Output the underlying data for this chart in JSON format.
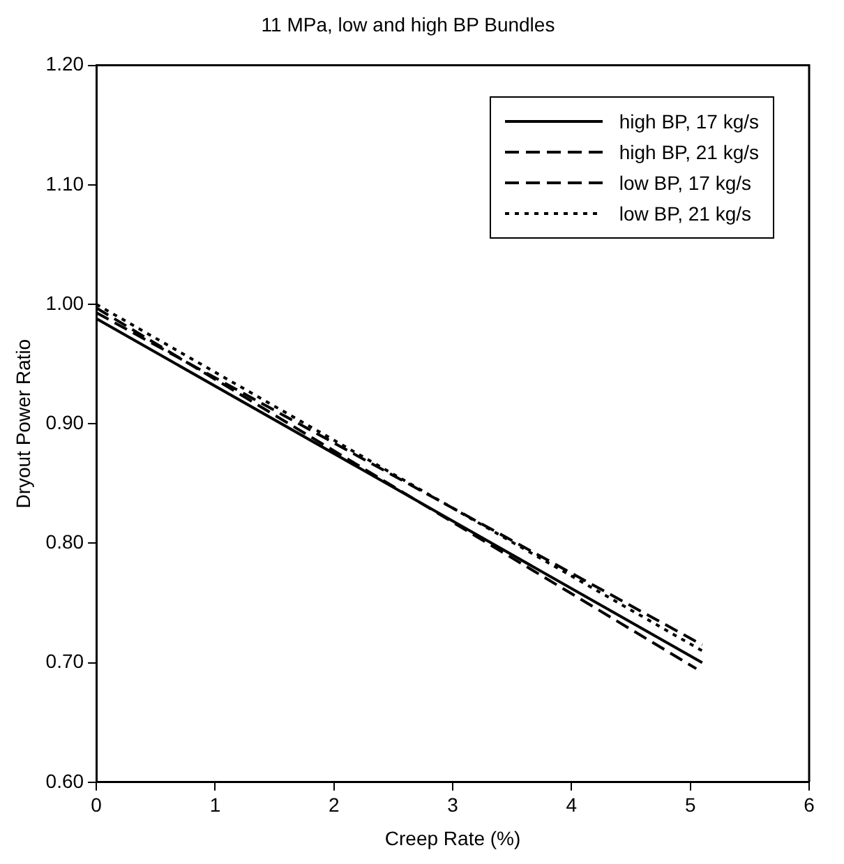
{
  "chart_data": {
    "type": "line",
    "title": "11 MPa, low and high BP Bundles",
    "xlabel": "Creep Rate (%)",
    "ylabel": "Dryout Power Ratio",
    "xlim": [
      0,
      6
    ],
    "xticks": [
      0,
      1,
      2,
      3,
      4,
      5,
      6
    ],
    "ylim": [
      0.6,
      1.2
    ],
    "yticks": [
      {
        "value": 0.6,
        "label": "0.60"
      },
      {
        "value": 0.7,
        "label": "0.70"
      },
      {
        "value": 0.8,
        "label": "0.80"
      },
      {
        "value": 0.9,
        "label": "0.90"
      },
      {
        "value": 1.0,
        "label": "1.00"
      },
      {
        "value": 1.1,
        "label": "1.10"
      },
      {
        "value": 1.2,
        "label": "1.20"
      }
    ],
    "grid": false,
    "legend": "top right",
    "marker": "none",
    "series": [
      {
        "name": "high BP, 17 kg/s",
        "color": "#000000",
        "line_style": "solid",
        "x": [
          0,
          5.1
        ],
        "values": [
          0.988,
          0.7
        ]
      },
      {
        "name": "high BP, 21 kg/s",
        "color": "#000000",
        "line_style": "dashed",
        "x": [
          0,
          5.1
        ],
        "values": [
          0.993,
          0.715
        ]
      },
      {
        "name": "low BP, 17 kg/s",
        "color": "#000000",
        "line_style": "dashed",
        "x": [
          0,
          5.05
        ],
        "values": [
          0.997,
          0.695
        ]
      },
      {
        "name": "low BP, 21 kg/s",
        "color": "#000000",
        "line_style": "dotted",
        "x": [
          0,
          5.1
        ],
        "values": [
          1.0,
          0.71
        ]
      }
    ]
  }
}
